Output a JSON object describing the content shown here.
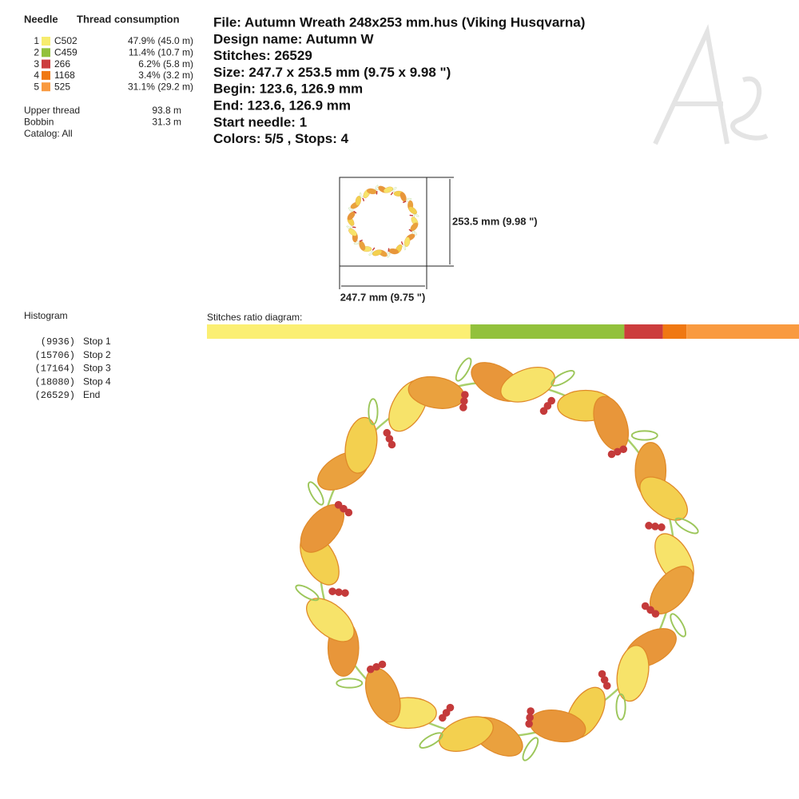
{
  "threads": {
    "headers": [
      "Needle",
      "Thread consumption"
    ],
    "rows": [
      {
        "needle": "1",
        "color": "#f7ec6e",
        "code": "C502",
        "consumption": "47.9% (45.0 m)"
      },
      {
        "needle": "2",
        "color": "#92c13c",
        "code": "C459",
        "consumption": "11.4% (10.7 m)"
      },
      {
        "needle": "3",
        "color": "#cc3d3d",
        "code": "266",
        "consumption": "6.2% (5.8 m)"
      },
      {
        "needle": "4",
        "color": "#f07812",
        "code": "1168",
        "consumption": "3.4% (3.2 m)"
      },
      {
        "needle": "5",
        "color": "#f99a40",
        "code": "525",
        "consumption": "31.1% (29.2 m)"
      }
    ]
  },
  "totals": [
    {
      "label": "Upper thread",
      "value": "93.8 m"
    },
    {
      "label": "Bobbin",
      "value": "31.3 m"
    }
  ],
  "catalog": "Catalog: All",
  "info": [
    "File: Autumn Wreath 248x253 mm.hus  (Viking Husqvarna)",
    "Design name: Autumn W",
    "Stitches: 26529",
    "Size: 247.7 x 253.5 mm (9.75 x 9.98 \")",
    "Begin: 123.6, 126.9 mm",
    "End: 123.6, 126.9 mm",
    "Start needle: 1",
    "Colors: 5/5 , Stops: 4"
  ],
  "preview": {
    "height_label": "253.5 mm (9.98 \")",
    "width_label": "247.7 mm (9.75 \")"
  },
  "histogram": {
    "title": "Histogram",
    "rows": [
      {
        "count": "(9936)",
        "label": "Stop 1"
      },
      {
        "count": "(15706)",
        "label": "Stop 2"
      },
      {
        "count": "(17164)",
        "label": "Stop 3"
      },
      {
        "count": "(18080)",
        "label": "Stop 4"
      },
      {
        "count": "(26529)",
        "label": "End"
      }
    ]
  },
  "stitches_ratio": {
    "title": "Stitches ratio diagram:",
    "segments": [
      {
        "color": "#fbef73",
        "value": 44.5
      },
      {
        "color": "#92c13c",
        "value": 26
      },
      {
        "color": "#cc3d3d",
        "value": 6.5
      },
      {
        "color": "#f07812",
        "value": 4
      },
      {
        "color": "#f99a40",
        "value": 19
      }
    ]
  }
}
